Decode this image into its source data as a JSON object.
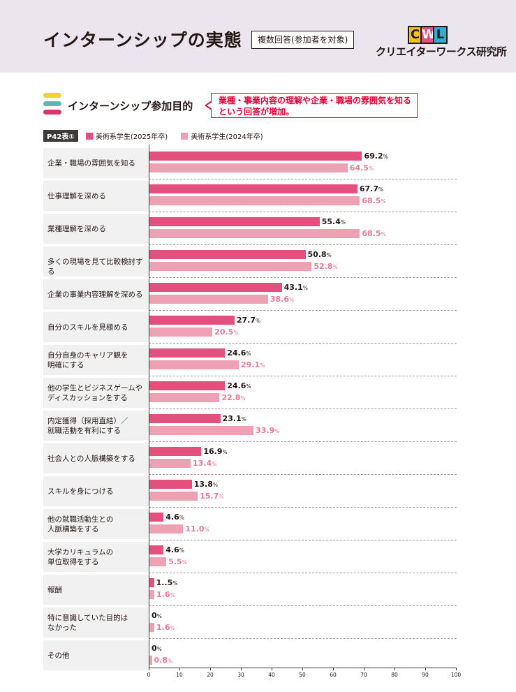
{
  "header": {
    "title": "インターンシップの実態",
    "scope_label": "複数回答(参加者を対象)",
    "logo_mark": [
      "C",
      "W",
      "L"
    ],
    "logo_name": "クリエイターワークス研究所"
  },
  "section": {
    "subtitle": "インターンシップ参加目的",
    "callout_line1": "業種・事業内容の理解や企業・職場の雰囲気を知る",
    "callout_line2": "という回答が増加。"
  },
  "colors": {
    "series_2025": "#e3507e",
    "series_2024": "#efa1b4",
    "value_2024_text": "#e87a98",
    "pill_yellow": "#f2d22e",
    "pill_teal": "#5cb9ac",
    "pill_pink": "#d9366e",
    "logo_c": "#f2c40f",
    "logo_w": "#e3507e",
    "logo_l": "#2ab0d1"
  },
  "chart_data": {
    "type": "bar",
    "orientation": "horizontal",
    "table_label": "P42表①",
    "value_suffix": "%",
    "categories": [
      [
        "企業・職場の雰囲気を知る"
      ],
      [
        "仕事理解を深める"
      ],
      [
        "業種理解を深める"
      ],
      [
        "多くの現場を見て比較検討する"
      ],
      [
        "企業の事業内容理解を深める"
      ],
      [
        "自分のスキルを見極める"
      ],
      [
        "自分自身のキャリア観を",
        "明確にする"
      ],
      [
        "他の学生とビジネスゲームや",
        "ディスカッションをする"
      ],
      [
        "内定獲得（採用直結）／",
        "就職活動を有利にする"
      ],
      [
        "社会人との人脈構築をする"
      ],
      [
        "スキルを身につける"
      ],
      [
        "他の就職活動生との",
        "人脈構築をする"
      ],
      [
        "大学カリキュラムの",
        "単位取得をする"
      ],
      [
        "報酬"
      ],
      [
        "特に意識していた目的は",
        "なかった"
      ],
      [
        "その他"
      ]
    ],
    "series": [
      {
        "name": "美術系学生(2025年卒)",
        "values": [
          69.2,
          67.7,
          55.4,
          50.8,
          43.1,
          27.7,
          24.6,
          24.6,
          23.1,
          16.9,
          13.8,
          4.6,
          4.6,
          1.5,
          0,
          0
        ],
        "labels": [
          "69.2",
          "67.7",
          "55.4",
          "50.8",
          "43.1",
          "27.7",
          "24.6",
          "24.6",
          "23.1",
          "16.9",
          "13.8",
          "4.6",
          "4.6",
          "1..5",
          "0",
          "0"
        ]
      },
      {
        "name": "美術系学生(2024年卒)",
        "values": [
          64.5,
          68.5,
          68.5,
          52.8,
          38.6,
          20.5,
          29.1,
          22.8,
          33.9,
          13.4,
          15.7,
          11.0,
          5.5,
          1.6,
          1.6,
          0.8
        ],
        "labels": [
          "64.5",
          "68.5",
          "68.5",
          "52.8",
          "38.6",
          "20.5",
          "29.1",
          "22.8",
          "33.9",
          "13.4",
          "15.7",
          "11.0",
          "5.5",
          "1.6",
          "1.6",
          "0.8"
        ]
      }
    ],
    "xlim": [
      0,
      100
    ],
    "xticks": [
      0,
      10,
      20,
      30,
      40,
      50,
      60,
      70,
      80,
      90,
      100
    ]
  }
}
